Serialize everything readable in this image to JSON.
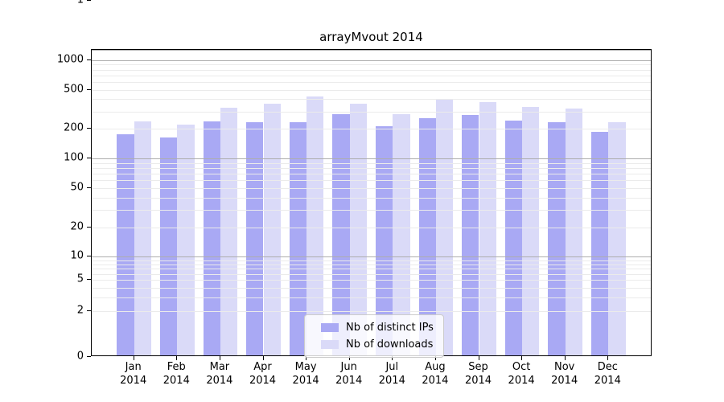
{
  "title": "arrayMvout 2014",
  "chart_data": {
    "type": "bar",
    "title": "arrayMvout 2014",
    "categories": [
      "Jan 2014",
      "Feb 2014",
      "Mar 2014",
      "Apr 2014",
      "May 2014",
      "Jun 2014",
      "Jul 2014",
      "Aug 2014",
      "Sep 2014",
      "Oct 2014",
      "Nov 2014",
      "Dec 2014"
    ],
    "series": [
      {
        "name": "Nb of distinct IPs",
        "color": "#a9a9f4",
        "values": [
          170,
          158,
          228,
          226,
          224,
          270,
          206,
          248,
          264,
          232,
          226,
          178
        ]
      },
      {
        "name": "Nb of downloads",
        "color": "#dadaf8",
        "values": [
          230,
          212,
          318,
          344,
          410,
          348,
          274,
          380,
          362,
          324,
          312,
          226
        ]
      }
    ],
    "yscale": "log",
    "y_tick_values": [
      0,
      1,
      2,
      5,
      10,
      20,
      50,
      100,
      200,
      500,
      1000
    ],
    "ylim": [
      0,
      1100
    ],
    "xlabel": "",
    "ylabel": "",
    "grid": true,
    "legend_position": "lower center"
  },
  "colors": {
    "series_1": "#a9a9f4",
    "series_2": "#dadaf8",
    "grid_major": "#adadad",
    "grid_minor": "#ebebeb",
    "spine": "#000000",
    "legend_border": "#cccccc",
    "legend_background": "rgba(255,255,255,0.8)"
  }
}
